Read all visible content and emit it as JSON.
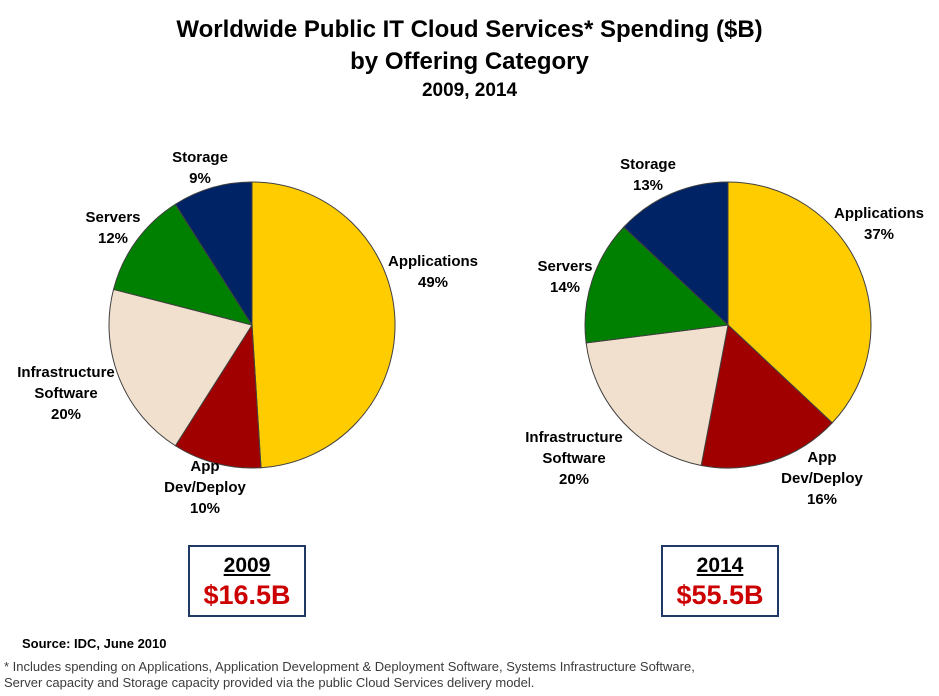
{
  "title": {
    "line1": "Worldwide Public IT Cloud Services* Spending ($B)",
    "line2": "by Offering Category",
    "line3": "2009, 2014"
  },
  "chart_data": [
    {
      "type": "pie",
      "year_label": "2009",
      "total_label": "$16.5B",
      "categories": [
        "Applications",
        "App Dev/Deploy",
        "Infrastructure Software",
        "Servers",
        "Storage"
      ],
      "values": [
        49,
        10,
        20,
        12,
        9
      ],
      "value_labels": [
        "49%",
        "10%",
        "20%",
        "12%",
        "9%"
      ],
      "colors": [
        "#FFCC00",
        "#A00000",
        "#F2E0CE",
        "#008000",
        "#002366"
      ],
      "start_angle_deg": -90,
      "direction": "clockwise",
      "unit": "%"
    },
    {
      "type": "pie",
      "year_label": "2014",
      "total_label": "$55.5B",
      "categories": [
        "Applications",
        "App Dev/Deploy",
        "Infrastructure Software",
        "Servers",
        "Storage"
      ],
      "values": [
        37,
        16,
        20,
        14,
        13
      ],
      "value_labels": [
        "37%",
        "16%",
        "20%",
        "14%",
        "13%"
      ],
      "colors": [
        "#FFCC00",
        "#A00000",
        "#F2E0CE",
        "#008000",
        "#002366"
      ],
      "start_angle_deg": -90,
      "direction": "clockwise",
      "unit": "%"
    }
  ],
  "style_colors": {
    "amount_text": "#CC0000",
    "box_border": "#1F3864",
    "slice_outline": "#404040"
  },
  "footer": {
    "source": "Source: IDC, June 2010",
    "footnote_lines": [
      "* Includes spending on Applications, Application Development & Deployment Software, Systems Infrastructure Software,",
      "Server capacity and Storage capacity provided via the public Cloud Services delivery model."
    ]
  }
}
